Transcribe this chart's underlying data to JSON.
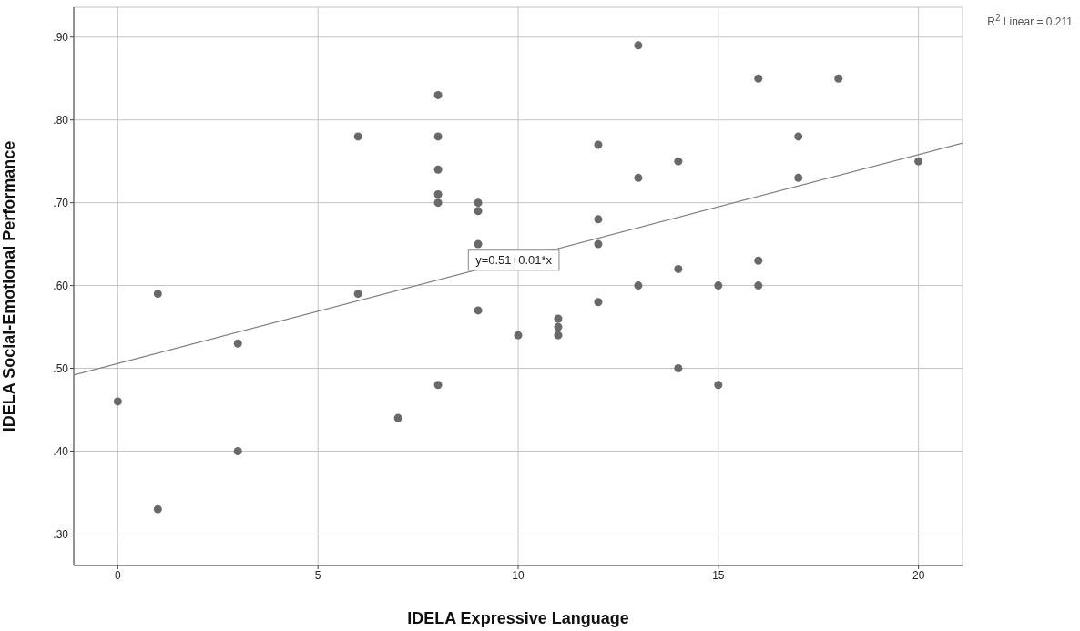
{
  "chart_data": {
    "type": "scatter",
    "xlabel": "IDELA Expressive Language",
    "ylabel": "IDELA Social-Emotional Performance",
    "xlim": [
      -1.1,
      21.1
    ],
    "xticks": [
      0,
      5,
      10,
      15,
      20
    ],
    "ylim": [
      0.262,
      0.936
    ],
    "yticks": [
      {
        "value": 0.3,
        "label": ".30"
      },
      {
        "value": 0.4,
        "label": ".40"
      },
      {
        "value": 0.5,
        "label": ".50"
      },
      {
        "value": 0.6,
        "label": ".60"
      },
      {
        "value": 0.7,
        "label": ".70"
      },
      {
        "value": 0.8,
        "label": ".80"
      },
      {
        "value": 0.9,
        "label": ".90"
      }
    ],
    "grid": true,
    "legend": false,
    "series": [
      {
        "marker": "circle",
        "color": "#696969",
        "x": [
          0,
          1,
          1,
          3,
          3,
          6,
          6,
          7,
          8,
          8,
          8,
          8,
          8,
          8,
          9,
          9,
          9,
          9,
          10,
          11,
          11,
          11,
          12,
          12,
          12,
          12,
          13,
          13,
          13,
          14,
          14,
          14,
          15,
          15,
          16,
          16,
          16,
          17,
          17,
          18,
          20
        ],
        "values": [
          0.46,
          0.59,
          0.33,
          0.53,
          0.4,
          0.78,
          0.59,
          0.44,
          0.83,
          0.78,
          0.74,
          0.71,
          0.7,
          0.48,
          0.7,
          0.69,
          0.65,
          0.57,
          0.54,
          0.56,
          0.55,
          0.54,
          0.77,
          0.68,
          0.65,
          0.58,
          0.89,
          0.73,
          0.6,
          0.75,
          0.62,
          0.5,
          0.6,
          0.48,
          0.85,
          0.63,
          0.6,
          0.78,
          0.73,
          0.85,
          0.75
        ]
      },
      {
        "type": "line",
        "marker": "none",
        "color": "#808080",
        "x": [
          -1.1,
          21.1
        ],
        "values": [
          0.492,
          0.772
        ]
      }
    ],
    "annotations": [
      "y=0.51+0.01*x",
      "R$^{2}$ Linear = 0.211"
    ]
  }
}
